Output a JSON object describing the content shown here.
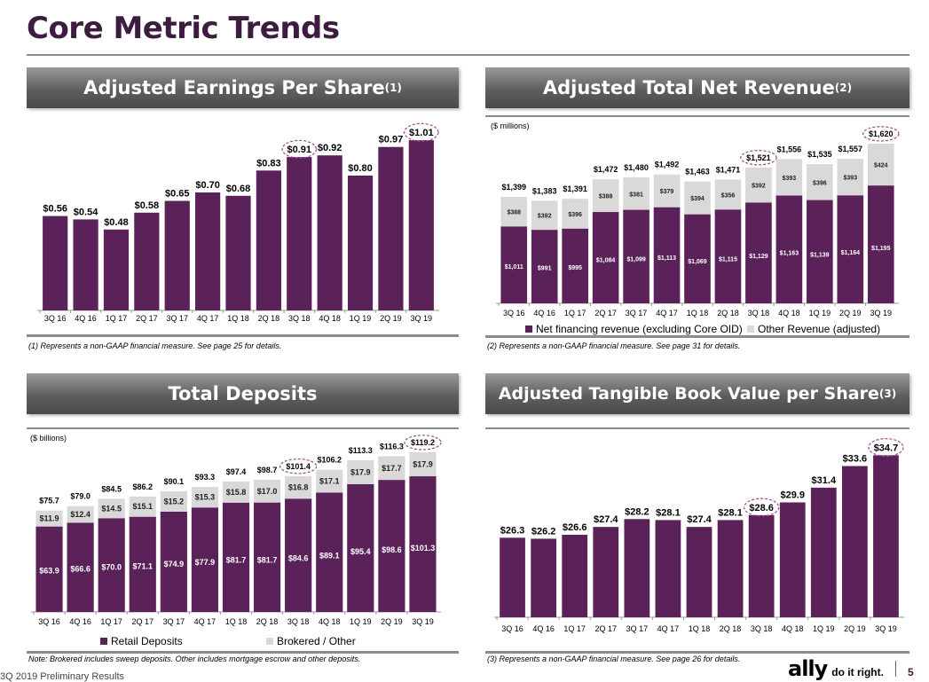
{
  "page_title": "Core Metric Trends",
  "footer": {
    "left": "3Q 2019 Preliminary Results",
    "brand": "ally",
    "tagline": "do it right.",
    "page_number": "5"
  },
  "colors": {
    "primary_bar": "#5b2159",
    "secondary_bar": "#d9d9d9",
    "highlight_circle": "#9c4a8e",
    "title": "#3d1c3f"
  },
  "panels": [
    {
      "title": "Adjusted Earnings Per Share",
      "sup": "(1)",
      "footnote": "(1)  Represents a non-GAAP financial measure.  See page 25 for details."
    },
    {
      "title": "Adjusted Total Net Revenue",
      "sup": "(2)",
      "unit": "($ millions)",
      "footnote": "(2)  Represents a non-GAAP financial measure.  See page 31 for details."
    },
    {
      "title": "Total Deposits",
      "sup": "",
      "unit": "($ billions)",
      "footnote": "Note: Brokered includes sweep deposits. Other includes mortgage escrow and other deposits."
    },
    {
      "title": "Adjusted Tangible Book Value per Share",
      "sup": "(3)",
      "footnote": "(3)  Represents a non-GAAP financial measure.  See page 26 for details."
    }
  ],
  "chart_data": [
    {
      "type": "bar",
      "title": "Adjusted Earnings Per Share",
      "categories": [
        "3Q 16",
        "4Q 16",
        "1Q 17",
        "2Q 17",
        "3Q 17",
        "4Q 17",
        "1Q 18",
        "2Q 18",
        "3Q 18",
        "4Q 18",
        "1Q 19",
        "2Q 19",
        "3Q 19"
      ],
      "values": [
        0.56,
        0.54,
        0.48,
        0.58,
        0.65,
        0.7,
        0.68,
        0.83,
        0.91,
        0.92,
        0.8,
        0.97,
        1.01
      ],
      "highlighted": [
        "3Q 18",
        "3Q 19"
      ],
      "grid": false
    },
    {
      "type": "bar",
      "stacked": true,
      "title": "Adjusted Total Net Revenue",
      "ylabel": "($ millions)",
      "categories": [
        "3Q 16",
        "4Q 16",
        "1Q 17",
        "2Q 17",
        "3Q 17",
        "4Q 17",
        "1Q 18",
        "2Q 18",
        "3Q 18",
        "4Q 18",
        "1Q 19",
        "2Q 19",
        "3Q 19"
      ],
      "series": [
        {
          "name": "Net financing revenue (excluding Core OID)",
          "values": [
            1011,
            991,
            995,
            1084,
            1099,
            1113,
            1069,
            1115,
            1129,
            1163,
            1139,
            1164,
            1195
          ]
        },
        {
          "name": "Other Revenue (adjusted)",
          "values": [
            388,
            392,
            396,
            388,
            381,
            379,
            394,
            356,
            392,
            393,
            396,
            393,
            424
          ]
        }
      ],
      "totals": [
        1399,
        1383,
        1391,
        1472,
        1480,
        1492,
        1463,
        1471,
        1521,
        1556,
        1535,
        1557,
        1620
      ],
      "highlighted": [
        "3Q 18",
        "3Q 19"
      ],
      "legend": "bottom",
      "grid": false
    },
    {
      "type": "bar",
      "stacked": true,
      "title": "Total Deposits",
      "ylabel": "($ billions)",
      "categories": [
        "3Q 16",
        "4Q 16",
        "1Q 17",
        "2Q 17",
        "3Q 17",
        "4Q 17",
        "1Q 18",
        "2Q 18",
        "3Q 18",
        "4Q 18",
        "1Q 19",
        "2Q 19",
        "3Q 19"
      ],
      "series": [
        {
          "name": "Retail Deposits",
          "values": [
            63.9,
            66.6,
            70.0,
            71.1,
            74.9,
            77.9,
            81.7,
            81.7,
            84.6,
            89.1,
            95.4,
            98.6,
            101.3
          ]
        },
        {
          "name": "Brokered / Other",
          "values": [
            11.9,
            12.4,
            14.5,
            15.1,
            15.2,
            15.3,
            15.8,
            17.0,
            16.8,
            17.1,
            17.9,
            17.7,
            17.9
          ]
        }
      ],
      "totals": [
        75.7,
        79.0,
        84.5,
        86.2,
        90.1,
        93.3,
        97.4,
        98.7,
        101.4,
        106.2,
        113.3,
        116.3,
        119.2
      ],
      "highlighted": [
        "3Q 18",
        "3Q 19"
      ],
      "legend": "bottom",
      "grid": false
    },
    {
      "type": "bar",
      "title": "Adjusted Tangible Book Value per Share",
      "categories": [
        "3Q 16",
        "4Q 16",
        "1Q 17",
        "2Q 17",
        "3Q 17",
        "4Q 17",
        "1Q 18",
        "2Q 18",
        "3Q 18",
        "4Q 18",
        "1Q 19",
        "2Q 19",
        "3Q 19"
      ],
      "values": [
        26.3,
        26.2,
        26.6,
        27.4,
        28.2,
        28.1,
        27.4,
        28.1,
        28.6,
        29.9,
        31.4,
        33.6,
        34.7
      ],
      "highlighted": [
        "3Q 18",
        "3Q 19"
      ],
      "grid": false
    }
  ]
}
